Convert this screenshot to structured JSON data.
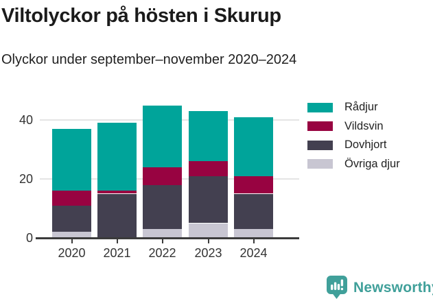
{
  "chart": {
    "title": "Viltolyckor på hösten i Skurup",
    "subtitle": "Olyckor under september–november 2020–2024"
  },
  "chart_data": {
    "type": "bar",
    "stacked": true,
    "title": "Viltolyckor på hösten i Skurup",
    "subtitle": "Olyckor under september–november 2020–2024",
    "categories": [
      "2020",
      "2021",
      "2022",
      "2023",
      "2024"
    ],
    "series": [
      {
        "name": "Rådjur",
        "color": "#00A49A",
        "values": [
          21,
          23,
          21,
          17,
          20
        ]
      },
      {
        "name": "Vildsvin",
        "color": "#980341",
        "values": [
          5,
          1,
          6,
          5,
          6
        ]
      },
      {
        "name": "Dovhjort",
        "color": "#434050",
        "values": [
          9,
          15,
          15,
          16,
          12
        ]
      },
      {
        "name": "Övriga djur",
        "color": "#C8C6D2",
        "values": [
          2,
          0,
          3,
          5,
          3
        ]
      }
    ],
    "stack_order_bottom_to_top": [
      "Övriga djur",
      "Dovhjort",
      "Vildsvin",
      "Rådjur"
    ],
    "totals": [
      37,
      39,
      45,
      43,
      41
    ],
    "xlabel": "",
    "ylabel": "",
    "ylim": [
      0,
      45
    ],
    "yticks": [
      0,
      20,
      40
    ],
    "grid": "horizontal",
    "legend_position": "right"
  },
  "footer": {
    "brand": "Newsworthy"
  },
  "colors": {
    "teal": "#00A49A",
    "maroon": "#980341",
    "dark_gray": "#434050",
    "light_gray": "#C8C6D2",
    "gridline": "#E4E4E4",
    "axis": "#3B3B3B",
    "brand_teal": "#40A09A"
  }
}
